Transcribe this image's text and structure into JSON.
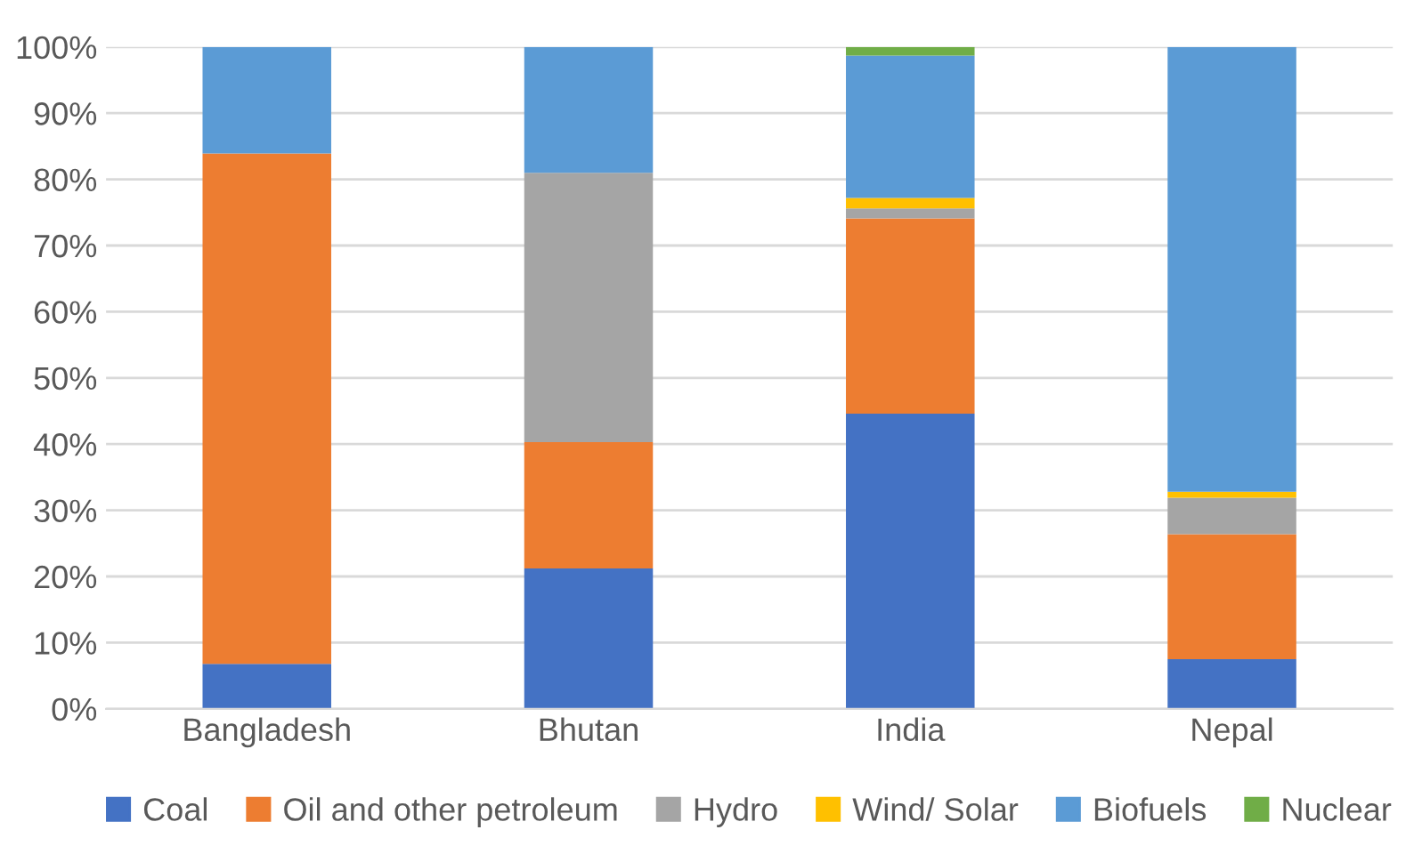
{
  "chart_data": {
    "type": "bar",
    "stacked": true,
    "categories": [
      "Bangladesh",
      "Bhutan",
      "India",
      "Nepal"
    ],
    "series": [
      {
        "name": "Coal",
        "color": "#4472c4",
        "values": [
          6.8,
          21.2,
          44.6,
          7.5
        ]
      },
      {
        "name": "Oil and other petroleum",
        "color": "#ed7d31",
        "values": [
          77.1,
          19.1,
          29.5,
          18.9
        ]
      },
      {
        "name": "Hydro",
        "color": "#a5a5a5",
        "values": [
          null,
          40.7,
          1.5,
          5.5
        ]
      },
      {
        "name": "Wind/ Solar",
        "color": "#ffc000",
        "values": [
          null,
          null,
          1.6,
          0.9
        ]
      },
      {
        "name": "Biofuels",
        "color": "#5b9bd5",
        "values": [
          16.1,
          19.0,
          21.5,
          67.2
        ]
      },
      {
        "name": "Nuclear",
        "color": "#70ad47",
        "values": [
          null,
          null,
          1.3,
          null
        ]
      }
    ],
    "ylim": [
      0,
      100
    ],
    "yticks": [
      {
        "value": 0,
        "label": "0%"
      },
      {
        "value": 10,
        "label": "10%"
      },
      {
        "value": 20,
        "label": "20%"
      },
      {
        "value": 30,
        "label": "30%"
      },
      {
        "value": 40,
        "label": "40%"
      },
      {
        "value": 50,
        "label": "50%"
      },
      {
        "value": 60,
        "label": "60%"
      },
      {
        "value": 70,
        "label": "70%"
      },
      {
        "value": 80,
        "label": "80%"
      },
      {
        "value": 90,
        "label": "90%"
      },
      {
        "value": 100,
        "label": "100%"
      }
    ],
    "grid": "y",
    "legend": "bottom"
  }
}
